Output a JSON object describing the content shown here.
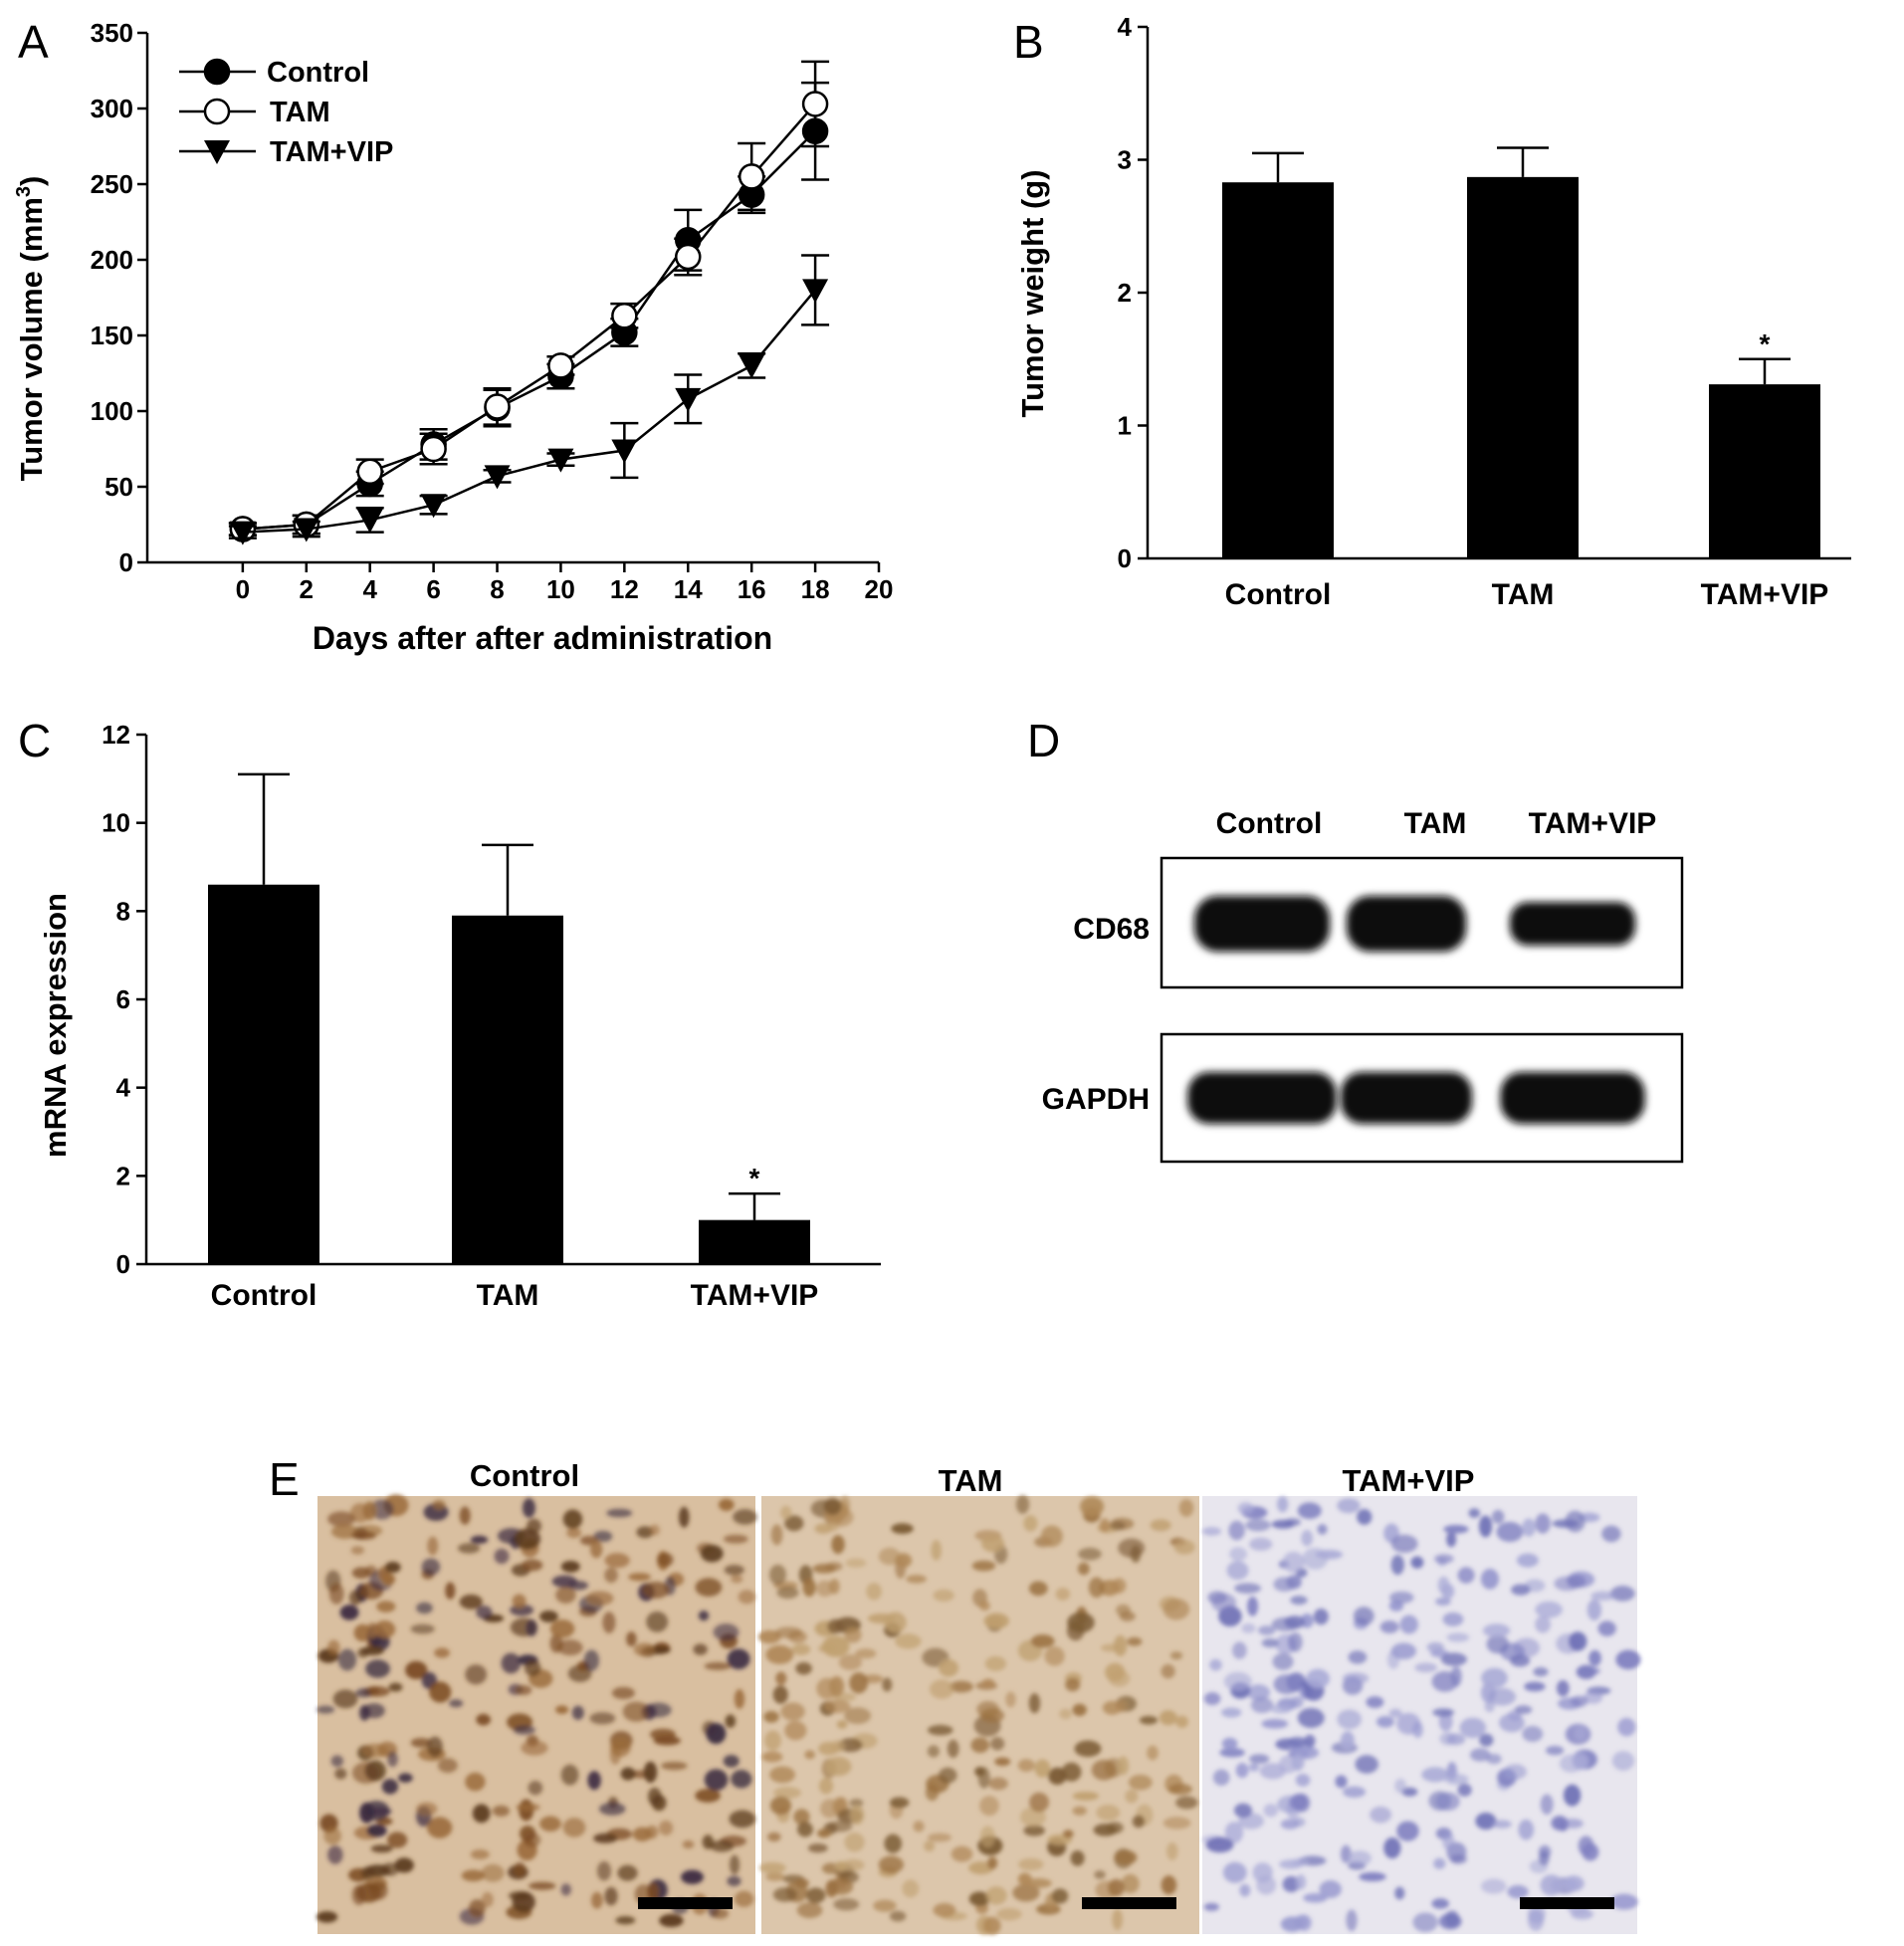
{
  "chart_data": [
    {
      "panel": "A",
      "type": "line",
      "xlabel": "Days after after administration",
      "ylabel": "Tumor volume (mm",
      "ylabel_sup": "3",
      "ylabel_end": ")",
      "xlim": [
        -3,
        20
      ],
      "ylim": [
        0,
        350
      ],
      "xticks": [
        0,
        2,
        4,
        6,
        8,
        10,
        12,
        14,
        16,
        18,
        20
      ],
      "yticks": [
        0,
        50,
        100,
        150,
        200,
        250,
        300,
        350
      ],
      "legend_position": "top-left",
      "x": [
        0,
        2,
        4,
        6,
        8,
        10,
        12,
        14,
        16,
        18
      ],
      "series": [
        {
          "name": "Control",
          "marker": "filled-circle",
          "values": [
            22,
            25,
            52,
            78,
            102,
            123,
            152,
            213,
            243,
            285
          ],
          "errors": [
            4,
            6,
            8,
            10,
            12,
            8,
            9,
            20,
            12,
            32
          ]
        },
        {
          "name": "TAM",
          "marker": "open-circle",
          "values": [
            22,
            25,
            60,
            75,
            103,
            130,
            163,
            202,
            255,
            303
          ],
          "errors": [
            4,
            6,
            8,
            10,
            12,
            6,
            8,
            12,
            22,
            28
          ]
        },
        {
          "name": "TAM+VIP",
          "marker": "filled-triangle-down",
          "values": [
            20,
            22,
            28,
            38,
            57,
            68,
            74,
            108,
            130,
            180
          ],
          "errors": [
            4,
            5,
            8,
            6,
            4,
            4,
            18,
            16,
            8,
            23
          ]
        }
      ]
    },
    {
      "panel": "B",
      "type": "bar",
      "categories": [
        "Control",
        "TAM",
        "TAM+VIP"
      ],
      "values": [
        2.83,
        2.87,
        1.31
      ],
      "errors": [
        0.22,
        0.22,
        0.19
      ],
      "significance": [
        "",
        "",
        "*"
      ],
      "ylabel": "Tumor weight (g)",
      "ylim": [
        0,
        4
      ],
      "yticks": [
        0,
        1,
        2,
        3,
        4
      ]
    },
    {
      "panel": "C",
      "type": "bar",
      "categories": [
        "Control",
        "TAM",
        "TAM+VIP"
      ],
      "values": [
        8.6,
        7.9,
        1.0
      ],
      "errors": [
        2.5,
        1.6,
        0.6
      ],
      "significance": [
        "",
        "",
        "*"
      ],
      "ylabel": "mRNA expression",
      "ylim": [
        0,
        12
      ],
      "yticks": [
        0,
        2,
        4,
        6,
        8,
        10,
        12
      ]
    }
  ],
  "panels": {
    "a": "A",
    "b": "B",
    "c": "C",
    "d": "D",
    "e": "E"
  },
  "western_blot": {
    "lanes": [
      "Control",
      "TAM",
      "TAM+VIP"
    ],
    "rows": [
      {
        "label": "CD68",
        "intensity": [
          1.0,
          1.0,
          0.55
        ]
      },
      {
        "label": "GAPDH",
        "intensity": [
          1.0,
          1.0,
          1.0
        ]
      }
    ]
  },
  "ihc": {
    "labels": [
      "Control",
      "TAM",
      "TAM+VIP"
    ],
    "stain_colors": [
      "#8a5a2b",
      "#b08a5a",
      "#8e8fc8"
    ]
  }
}
